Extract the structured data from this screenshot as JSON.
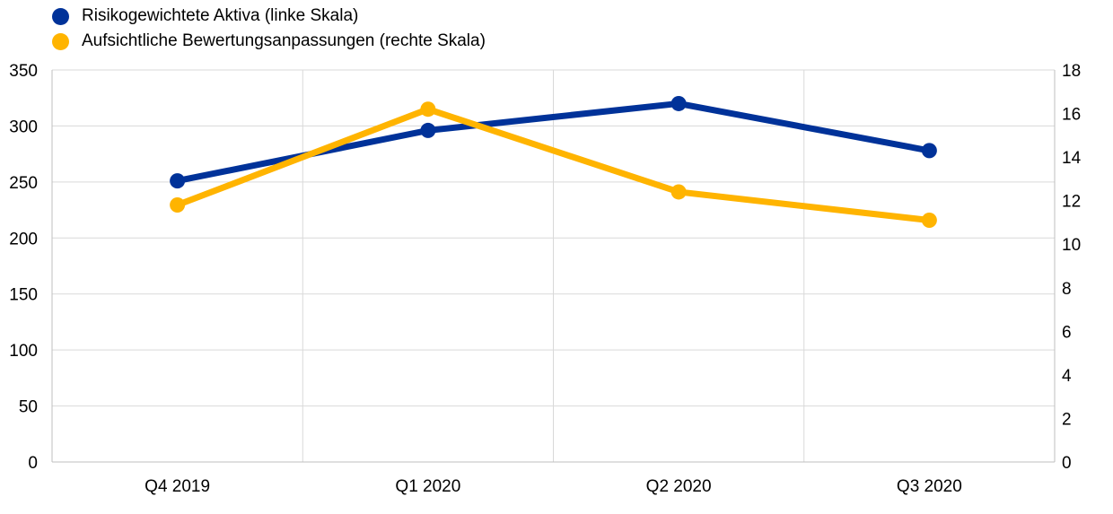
{
  "chart_data": {
    "type": "line",
    "categories": [
      "Q4 2019",
      "Q1 2020",
      "Q2 2020",
      "Q3 2020"
    ],
    "series": [
      {
        "name": "Risikogewichtete Aktiva (linke Skala)",
        "axis": "left",
        "color": "#003299",
        "values": [
          251,
          296,
          320,
          278
        ]
      },
      {
        "name": "Aufsichtliche Bewertungsanpassungen (rechte Skala)",
        "axis": "right",
        "color": "#FFB400",
        "values": [
          11.8,
          16.2,
          12.4,
          11.1
        ]
      }
    ],
    "y_left": {
      "ylim": [
        0,
        350
      ],
      "ticks": [
        "0",
        "50",
        "100",
        "150",
        "200",
        "250",
        "300",
        "350"
      ]
    },
    "y_right": {
      "ylim": [
        0,
        18
      ],
      "ticks": [
        "0",
        "2",
        "4",
        "6",
        "8",
        "10",
        "12",
        "14",
        "16",
        "18"
      ]
    },
    "grid": true,
    "legend_position": "top-left"
  }
}
